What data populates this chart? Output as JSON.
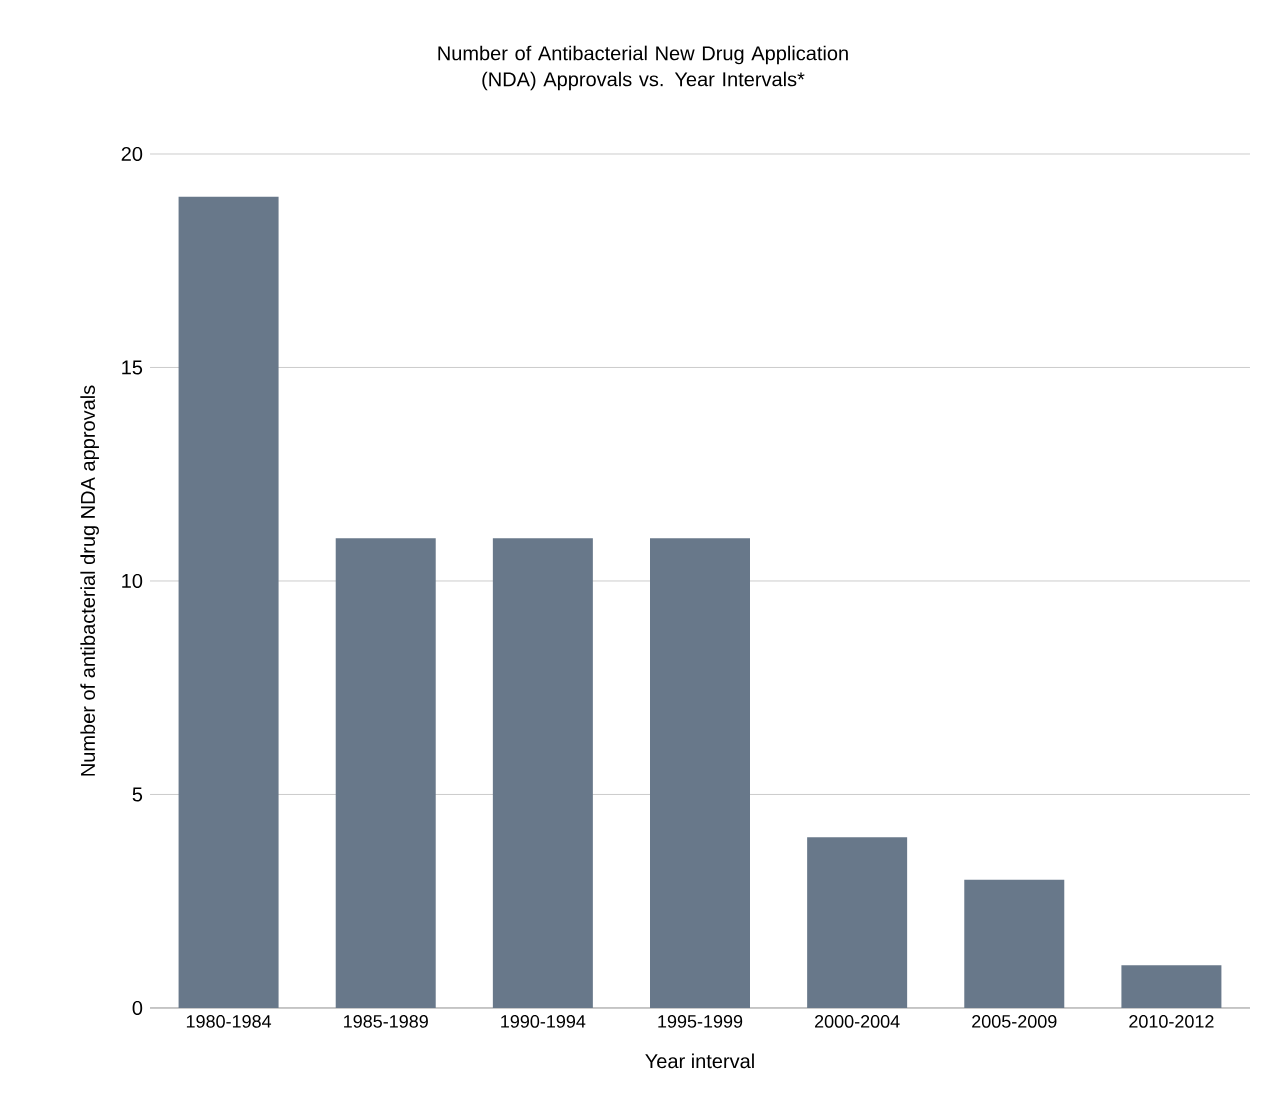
{
  "chart_data": {
    "type": "bar",
    "title": "Number of Antibacterial New Drug Application (NDA) Approvals vs. Year Intervals*",
    "xlabel": "Year interval",
    "ylabel": "Number of antibacterial drug NDA approvals",
    "categories": [
      "1980-1984",
      "1985-1989",
      "1990-1994",
      "1995-1999",
      "2000-2004",
      "2005-2009",
      "2010-2012"
    ],
    "values": [
      19,
      11,
      11,
      11,
      4,
      3,
      1
    ],
    "color": "#68788a",
    "ylim": [
      0,
      20
    ],
    "yticks": [
      0,
      5,
      10,
      15,
      20
    ],
    "grid": "y"
  }
}
